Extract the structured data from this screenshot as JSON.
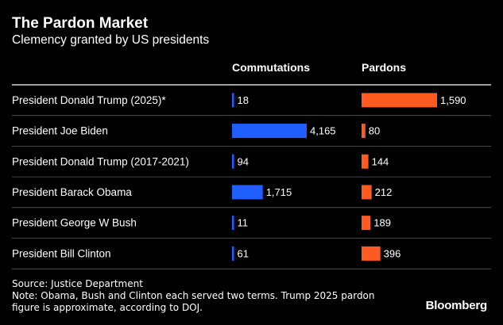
{
  "header": {
    "title": "The Pardon Market",
    "subtitle": "Clemency granted by US presidents"
  },
  "chart_data": {
    "type": "bar",
    "title": "The Pardon Market",
    "subtitle": "Clemency granted by US presidents",
    "categories": [
      "President Donald Trump (2025)*",
      "President Joe Biden",
      "President Donald Trump (2017-2021)",
      "President Barack Obama",
      "President George W Bush",
      "President Bill Clinton"
    ],
    "series": [
      {
        "name": "Commutations",
        "values": [
          18,
          4165,
          94,
          1715,
          11,
          61
        ],
        "labels": [
          "18",
          "4,165",
          "94",
          "1,715",
          "11",
          "61"
        ],
        "color": "#1f5eff"
      },
      {
        "name": "Pardons",
        "values": [
          1590,
          80,
          144,
          212,
          189,
          396
        ],
        "labels": [
          "1,590",
          "80",
          "144",
          "212",
          "189",
          "396"
        ],
        "color": "#ff5a1f"
      }
    ],
    "legend": "none",
    "grid": false
  },
  "footer": {
    "source": "Source: Justice Department",
    "note_line1": "Note: Obama, Bush and Clinton each served two terms. Trump 2025 pardon",
    "note_line2": "figure is approximate, according to DOJ.",
    "brand": "Bloomberg"
  },
  "colors": {
    "background": "#000000",
    "text": "#ffffff",
    "divider": "#5a5a5a",
    "commutations": "#1f5eff",
    "pardons": "#ff5a1f"
  }
}
